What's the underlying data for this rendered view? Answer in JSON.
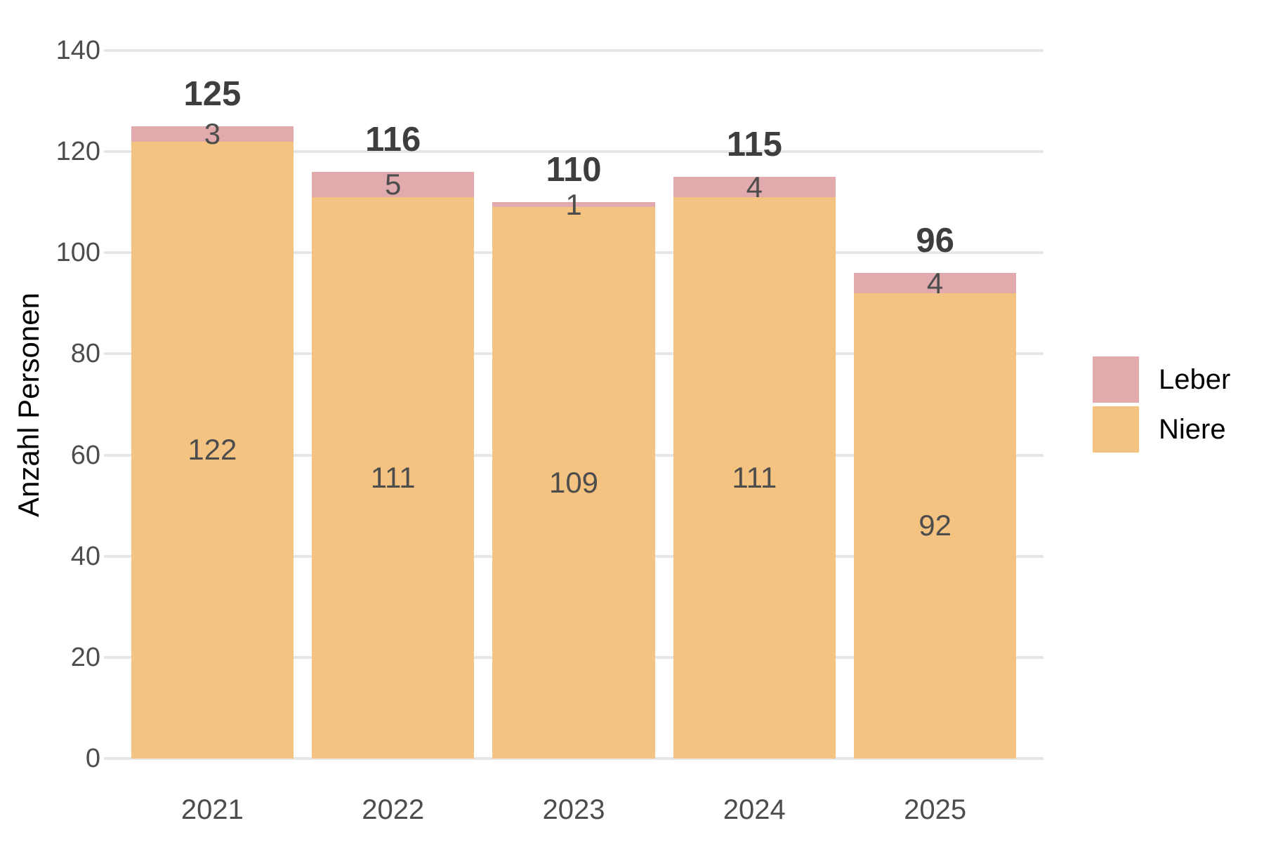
{
  "chart_data": {
    "type": "bar",
    "variant": "stacked",
    "title": "",
    "xlabel": "",
    "ylabel": "Anzahl Personen",
    "categories": [
      "2021",
      "2022",
      "2023",
      "2024",
      "2025"
    ],
    "series": [
      {
        "name": "Leber",
        "color": "#E1AAAD",
        "values": [
          3,
          5,
          1,
          4,
          4
        ]
      },
      {
        "name": "Niere",
        "color": "#F4C381",
        "values": [
          122,
          111,
          109,
          111,
          92
        ]
      }
    ],
    "totals": [
      125,
      116,
      110,
      115,
      96
    ],
    "ylim": [
      0,
      140
    ],
    "yticks": [
      0,
      20,
      40,
      60,
      80,
      100,
      120,
      140
    ],
    "grid": true,
    "legend_position": "right"
  },
  "colors": {
    "background": "#FFFFFF",
    "gridline": "#E6E6E6",
    "axis_text": "#4D4D4D",
    "segment_label": "#4D4D4D",
    "total_label": "#3E3E3E",
    "axis_title": "#000000",
    "legend_text": "#000000"
  }
}
